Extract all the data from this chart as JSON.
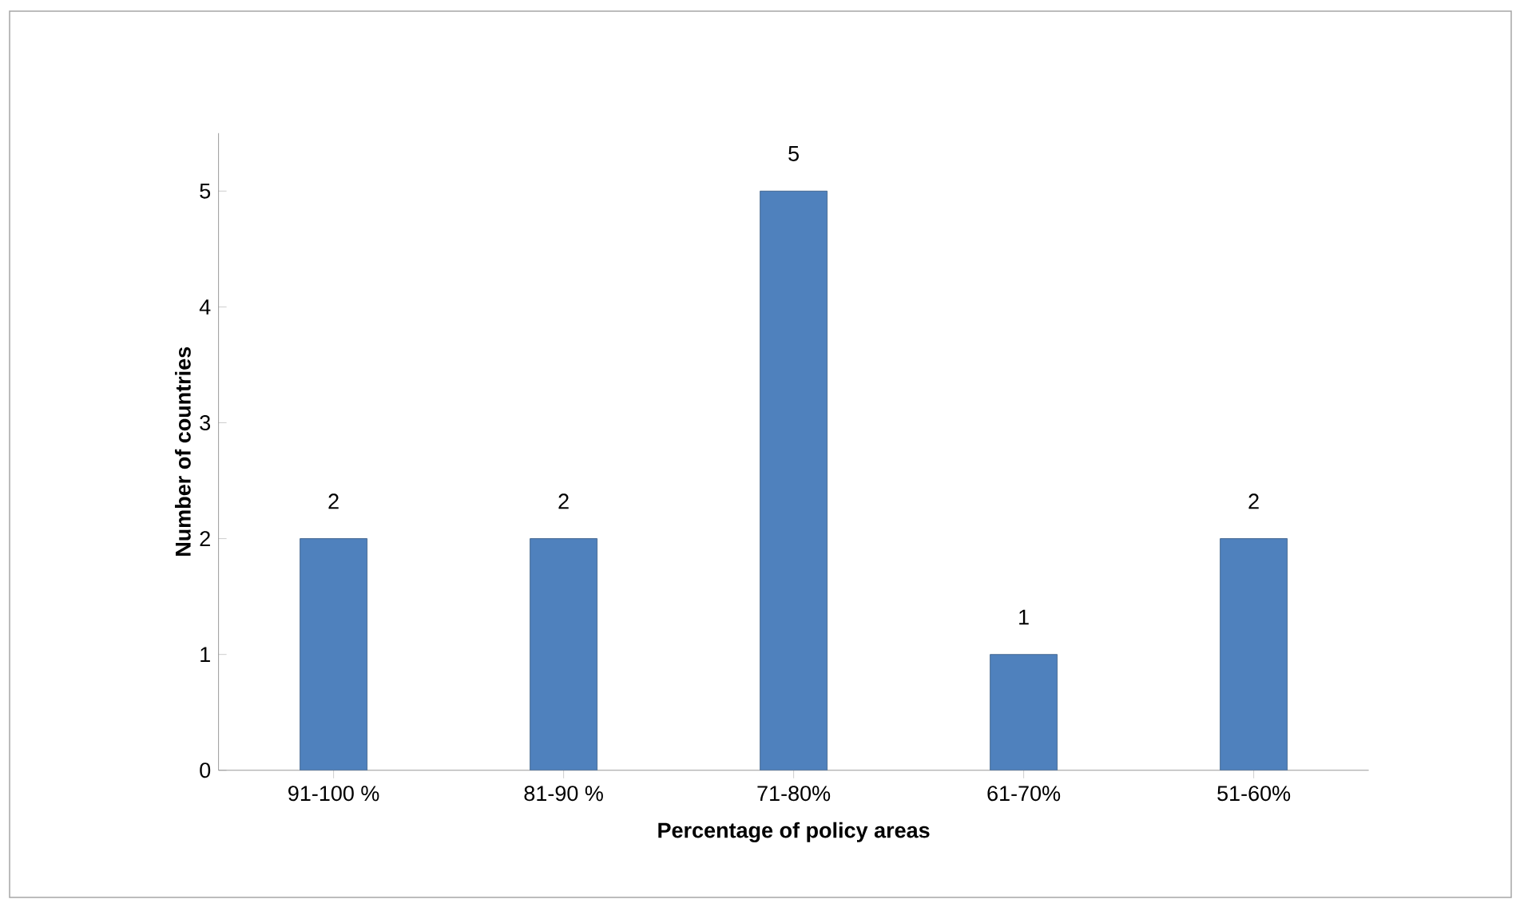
{
  "chart_data": {
    "type": "bar",
    "xlabel": "Percentage of policy areas",
    "ylabel": "Number of countries",
    "categories": [
      "91-100 %",
      "81-90 %",
      "71-80%",
      "61-70%",
      "51-60%"
    ],
    "values": [
      2,
      2,
      5,
      1,
      2
    ],
    "color": "#4f81bd",
    "ylim": [
      0,
      5.5
    ],
    "yticks": [
      0,
      1,
      2,
      3,
      4,
      5
    ],
    "data_labels": true,
    "grid": false
  }
}
